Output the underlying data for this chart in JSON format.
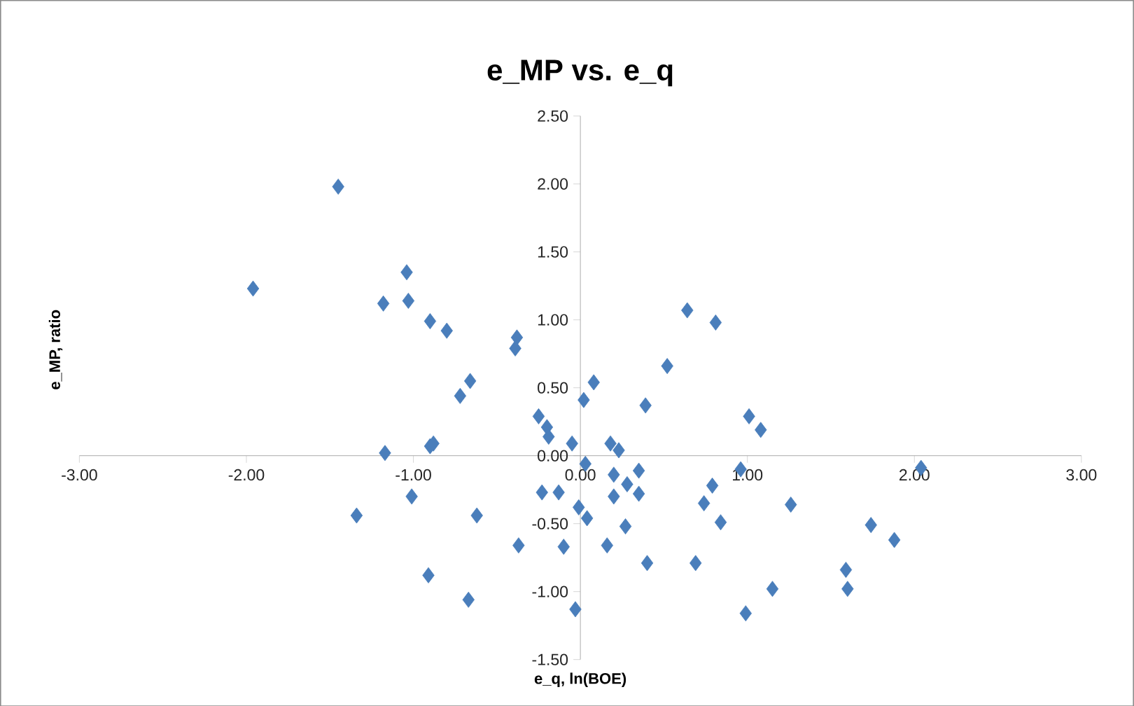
{
  "chart_data": {
    "type": "scatter",
    "title": "e_MP vs. e_q",
    "xlabel": "e_q, ln(BOE)",
    "ylabel": "e_MP, ratio",
    "series": [
      {
        "color": "#4a7ebb",
        "x": [
          -1.45,
          -1.96,
          -1.04,
          -1.18,
          -1.03,
          -0.9,
          -0.8,
          -0.38,
          -0.39,
          -0.66,
          -0.72,
          -1.17,
          -0.9,
          -0.88,
          -0.25,
          -0.2,
          -0.19,
          -0.05,
          0.03,
          0.08,
          0.02,
          0.64,
          0.81,
          0.52,
          0.39,
          1.01,
          1.08,
          0.18,
          0.23,
          0.96,
          2.04,
          0.2,
          0.35,
          0.28,
          0.35,
          0.2,
          -0.23,
          -0.13,
          -0.01,
          0.04,
          0.79,
          0.74,
          0.84,
          1.26,
          0.27,
          -0.62,
          -0.37,
          -0.1,
          0.16,
          0.4,
          0.69,
          1.74,
          1.88,
          1.59,
          1.6,
          1.15,
          0.99,
          -0.03,
          -0.67,
          -1.34,
          -1.01,
          -0.91
        ],
        "values": [
          1.98,
          1.23,
          1.35,
          1.12,
          1.14,
          0.99,
          0.92,
          0.87,
          0.79,
          0.55,
          0.44,
          0.02,
          0.07,
          0.09,
          0.29,
          0.21,
          0.14,
          0.09,
          -0.06,
          0.54,
          0.41,
          1.07,
          0.98,
          0.66,
          0.37,
          0.29,
          0.19,
          0.09,
          0.04,
          -0.1,
          -0.09,
          -0.14,
          -0.11,
          -0.21,
          -0.28,
          -0.3,
          -0.27,
          -0.27,
          -0.38,
          -0.46,
          -0.22,
          -0.35,
          -0.49,
          -0.36,
          -0.52,
          -0.44,
          -0.66,
          -0.67,
          -0.66,
          -0.79,
          -0.79,
          -0.51,
          -0.62,
          -0.84,
          -0.98,
          -0.98,
          -1.16,
          -1.13,
          -1.06,
          -0.44,
          -0.3,
          -0.88
        ]
      }
    ],
    "marker": "diamond",
    "grid": false,
    "xlim": [
      -3,
      3
    ],
    "xticks": [
      {
        "value": -3,
        "label": "-3.00"
      },
      {
        "value": -2,
        "label": "-2.00"
      },
      {
        "value": -1,
        "label": "-1.00"
      },
      {
        "value": 0,
        "label": "0.00"
      },
      {
        "value": 1,
        "label": "1.00"
      },
      {
        "value": 2,
        "label": "2.00"
      },
      {
        "value": 3,
        "label": "3.00"
      }
    ],
    "ylim": [
      -1.5,
      2.5
    ],
    "yticks": [
      {
        "value": -1.5,
        "label": "-1.50"
      },
      {
        "value": -1,
        "label": "-1.00"
      },
      {
        "value": -0.5,
        "label": "-0.50"
      },
      {
        "value": 0,
        "label": "0.00"
      },
      {
        "value": 0.5,
        "label": "0.50"
      },
      {
        "value": 1,
        "label": "1.00"
      },
      {
        "value": 1.5,
        "label": "1.50"
      },
      {
        "value": 2,
        "label": "2.00"
      },
      {
        "value": 2.5,
        "label": "2.50"
      }
    ]
  }
}
